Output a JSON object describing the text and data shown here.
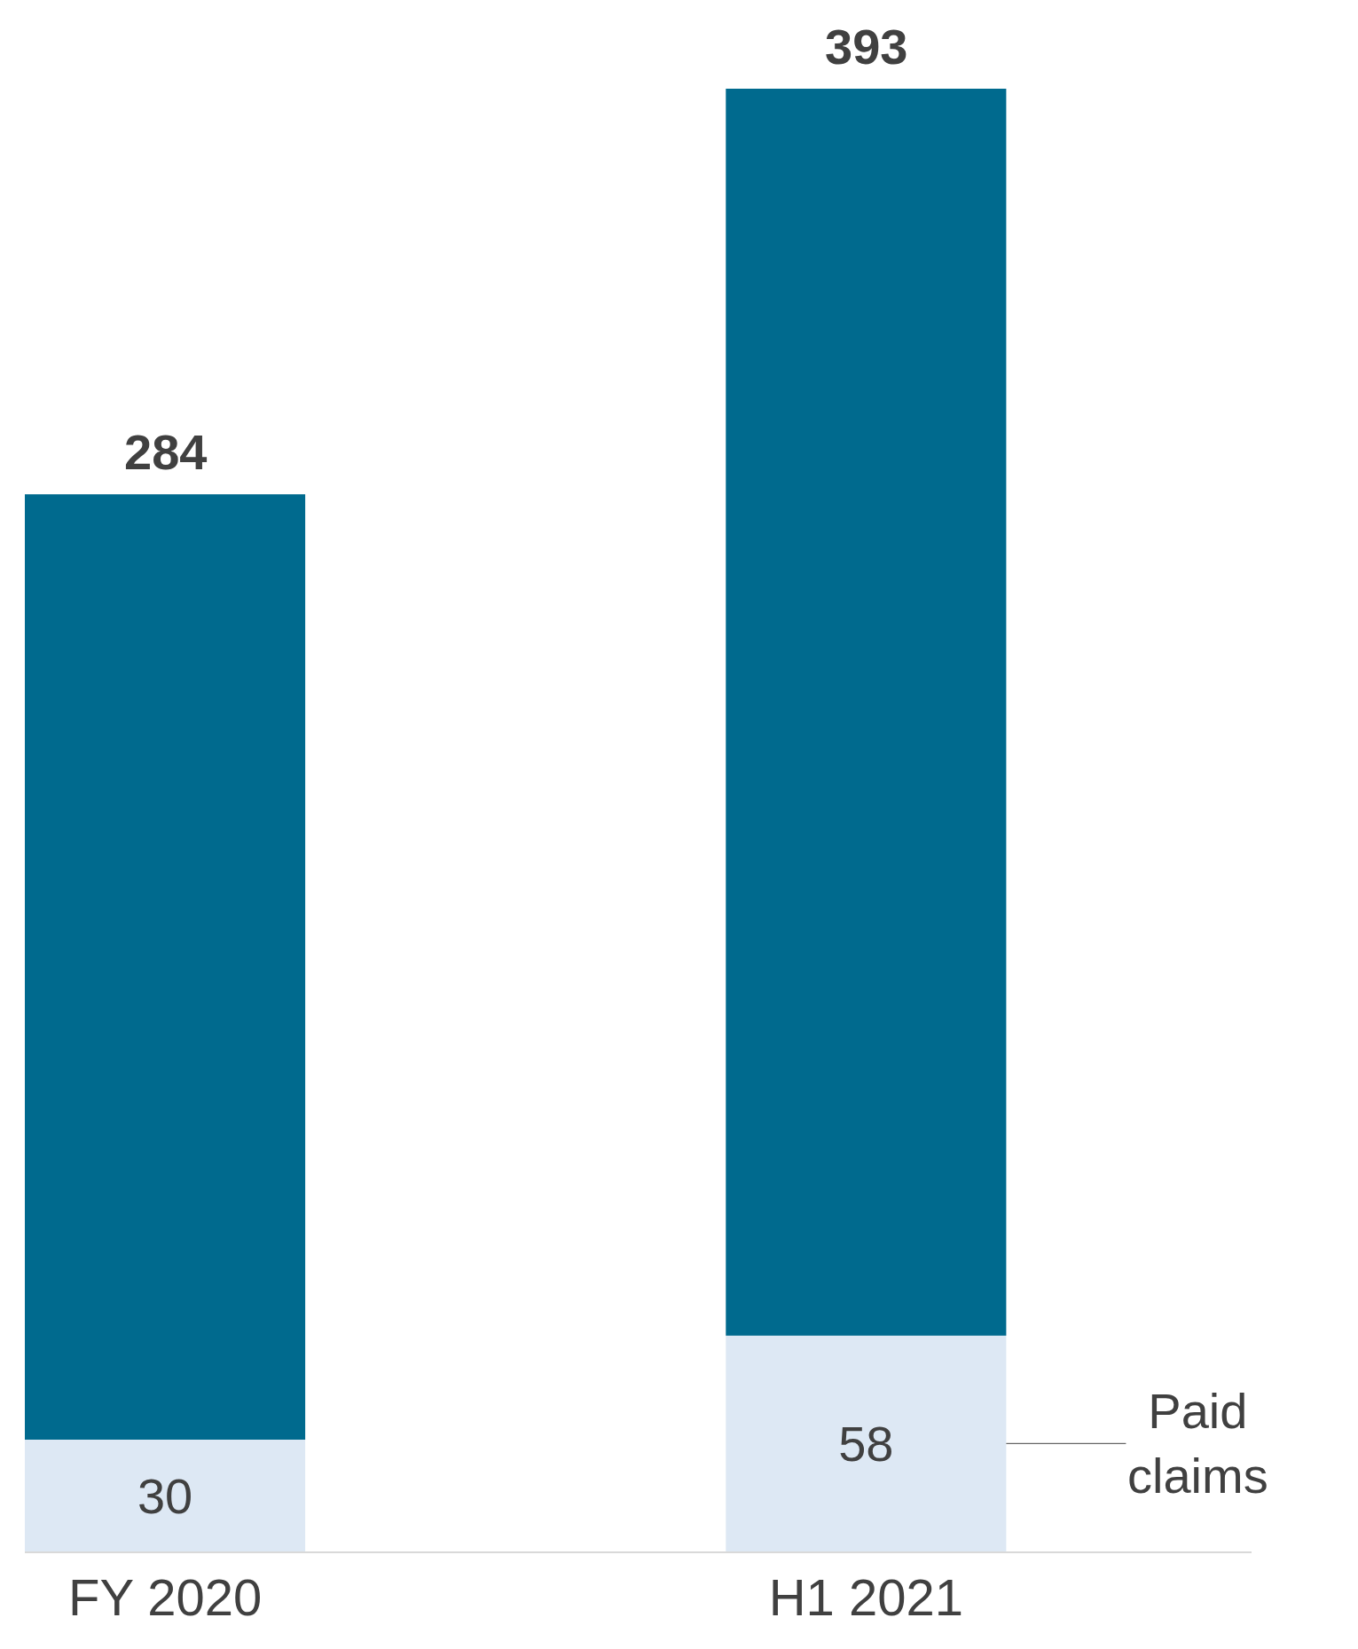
{
  "chart_data": {
    "type": "bar",
    "stacked": true,
    "categories": [
      "FY 2020",
      "H1 2021"
    ],
    "series": [
      {
        "name": "Paid claims",
        "color": "#dde8f4",
        "values": [
          30,
          58
        ],
        "value_labels": [
          "30",
          "58"
        ]
      },
      {
        "color": "#006a8e",
        "values": [
          254,
          335
        ]
      }
    ],
    "totals": [
      "284",
      "393"
    ],
    "legend": false,
    "grid": false
  }
}
